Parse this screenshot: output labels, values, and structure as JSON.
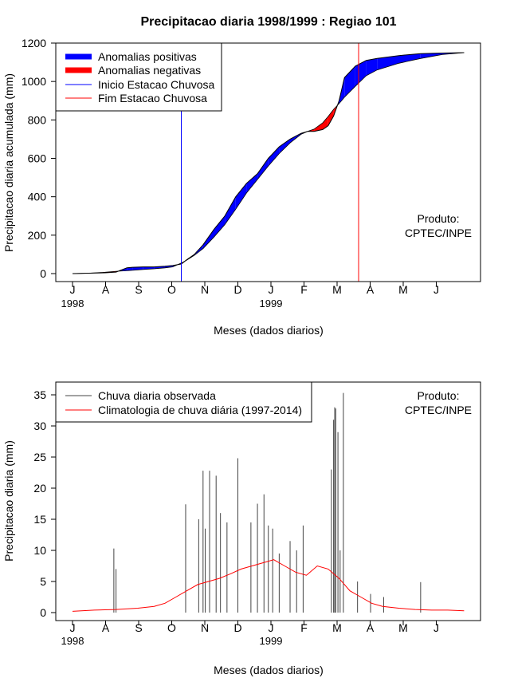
{
  "chart_data": [
    {
      "type": "area",
      "title": "Precipitacao diaria 1998/1999 : Regiao 101",
      "xlabel": "Meses (dados diarios)",
      "ylabel": "Precipitacao diaria acumulada (mm)",
      "ylim": [
        0,
        1200
      ],
      "yticks": [
        "0",
        "200",
        "400",
        "600",
        "800",
        "1000",
        "1200"
      ],
      "month_ticks": [
        "J",
        "A",
        "S",
        "O",
        "N",
        "D",
        "J",
        "F",
        "M",
        "A",
        "M",
        "J"
      ],
      "year_labels": [
        "1998",
        "1999"
      ],
      "legend": {
        "position": "top-left",
        "entries": [
          "Anomalias positivas",
          "Anomalias negativas",
          "Inicio Estacao Chuvosa",
          "Fim Estacao Chuvosa"
        ],
        "colors": [
          "#0000ff",
          "#ff0000",
          "#0000ff",
          "#ff0000"
        ]
      },
      "annotation": [
        "Produto:",
        "CPTEC/INPE"
      ],
      "rain_start_day": 100,
      "rain_end_day": 263,
      "x_days": [
        0,
        15,
        30,
        40,
        50,
        55,
        65,
        75,
        85,
        92,
        100,
        105,
        112,
        120,
        130,
        140,
        150,
        160,
        170,
        180,
        190,
        200,
        210,
        216,
        222,
        230,
        235,
        240,
        245,
        250,
        260,
        270,
        280,
        300,
        320,
        340,
        360
      ],
      "observed": [
        0,
        2,
        4,
        8,
        30,
        33,
        35,
        35,
        38,
        42,
        50,
        72,
        100,
        150,
        230,
        300,
        400,
        470,
        520,
        600,
        660,
        700,
        730,
        740,
        740,
        750,
        770,
        820,
        900,
        1020,
        1080,
        1110,
        1120,
        1135,
        1145,
        1148,
        1150
      ],
      "climatology": [
        0,
        2,
        7,
        12,
        15,
        17,
        21,
        25,
        30,
        35,
        55,
        70,
        95,
        130,
        190,
        255,
        335,
        420,
        490,
        560,
        625,
        680,
        725,
        740,
        752,
        785,
        818,
        855,
        885,
        918,
        975,
        1030,
        1060,
        1095,
        1120,
        1140,
        1150
      ],
      "colors": {
        "positive": "#0000ff",
        "negative": "#ff0000",
        "start_line": "#0000ff",
        "end_line": "#ff0000"
      }
    },
    {
      "type": "bar",
      "xlabel": "Meses (dados diarios)",
      "ylabel": "Precipitacao diaria (mm)",
      "ylim": [
        0,
        35
      ],
      "yticks": [
        "0",
        "5",
        "10",
        "15",
        "20",
        "25",
        "30",
        "35"
      ],
      "month_ticks": [
        "J",
        "A",
        "S",
        "O",
        "N",
        "D",
        "J",
        "F",
        "M",
        "A",
        "M",
        "J"
      ],
      "year_labels": [
        "1998",
        "1999"
      ],
      "legend": {
        "position": "top-left",
        "entries": [
          "Chuva diaria observada",
          "Climatologia de chuva diária (1997-2014)"
        ],
        "colors": [
          "#555555",
          "#ff0000"
        ]
      },
      "annotation": [
        "Produto:",
        "CPTEC/INPE"
      ],
      "peaks": [
        [
          38,
          10.3
        ],
        [
          40,
          7.0
        ],
        [
          104,
          17.4
        ],
        [
          116,
          15.0
        ],
        [
          120,
          22.8
        ],
        [
          122,
          13.5
        ],
        [
          126,
          22.8
        ],
        [
          132,
          22.0
        ],
        [
          136,
          16.0
        ],
        [
          142,
          14.5
        ],
        [
          152,
          24.8
        ],
        [
          164,
          14.5
        ],
        [
          170,
          17.5
        ],
        [
          176,
          19.0
        ],
        [
          180,
          14.0
        ],
        [
          184,
          13.5
        ],
        [
          190,
          9.5
        ],
        [
          200,
          11.5
        ],
        [
          206,
          10.0
        ],
        [
          212,
          14.0
        ],
        [
          238,
          23.0
        ],
        [
          240,
          31.0
        ],
        [
          241,
          33.0
        ],
        [
          242,
          32.8
        ],
        [
          244,
          29.0
        ],
        [
          246,
          10.0
        ],
        [
          249,
          35.3
        ],
        [
          262,
          5.0
        ],
        [
          274,
          3.0
        ],
        [
          286,
          2.5
        ],
        [
          320,
          4.9
        ]
      ],
      "clim_x": [
        0,
        20,
        40,
        60,
        75,
        85,
        95,
        105,
        115,
        125,
        135,
        145,
        155,
        165,
        175,
        185,
        195,
        205,
        215,
        225,
        235,
        245,
        255,
        265,
        275,
        285,
        300,
        315,
        330,
        345,
        360
      ],
      "clim_y": [
        0.2,
        0.4,
        0.5,
        0.7,
        1.0,
        1.5,
        2.5,
        3.5,
        4.5,
        5.0,
        5.5,
        6.2,
        7.0,
        7.5,
        8.0,
        8.5,
        7.5,
        6.5,
        6.0,
        7.5,
        7.0,
        5.5,
        3.5,
        2.5,
        1.5,
        1.0,
        0.7,
        0.5,
        0.4,
        0.4,
        0.3
      ],
      "colors": {
        "observed": "#444444",
        "climatology": "#ff0000"
      }
    }
  ]
}
